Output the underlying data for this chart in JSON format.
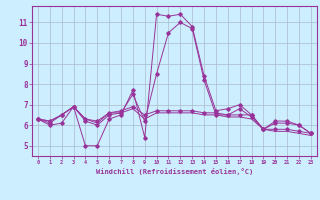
{
  "xlabel": "Windchill (Refroidissement éolien,°C)",
  "background_color": "#cceeff",
  "grid_color": "#aabbcc",
  "line_color": "#993399",
  "xlim": [
    -0.5,
    23.5
  ],
  "ylim": [
    4.5,
    11.8
  ],
  "xticks": [
    0,
    1,
    2,
    3,
    4,
    5,
    6,
    7,
    8,
    9,
    10,
    11,
    12,
    13,
    14,
    15,
    16,
    17,
    18,
    19,
    20,
    21,
    22,
    23
  ],
  "yticks": [
    5,
    6,
    7,
    8,
    9,
    10,
    11
  ],
  "hours": [
    0,
    1,
    2,
    3,
    4,
    5,
    6,
    7,
    8,
    9,
    10,
    11,
    12,
    13,
    14,
    15,
    16,
    17,
    18,
    19,
    20,
    21,
    22,
    23
  ],
  "line1": [
    6.3,
    6.0,
    6.1,
    6.9,
    5.0,
    5.0,
    6.3,
    6.5,
    7.7,
    5.4,
    11.4,
    11.3,
    11.4,
    10.8,
    8.4,
    6.7,
    6.8,
    7.0,
    6.5,
    5.8,
    6.2,
    6.2,
    6.0,
    5.6
  ],
  "line2": [
    6.3,
    6.1,
    6.5,
    6.9,
    6.2,
    6.0,
    6.5,
    6.6,
    7.5,
    6.2,
    8.5,
    10.5,
    11.0,
    10.7,
    8.2,
    6.5,
    6.5,
    6.8,
    6.4,
    5.8,
    6.1,
    6.1,
    6.0,
    5.6
  ],
  "line3": [
    6.3,
    6.2,
    6.5,
    6.9,
    6.3,
    6.2,
    6.6,
    6.7,
    6.9,
    6.5,
    6.7,
    6.7,
    6.7,
    6.7,
    6.6,
    6.6,
    6.5,
    6.5,
    6.5,
    5.8,
    5.8,
    5.8,
    5.7,
    5.6
  ],
  "line4": [
    6.3,
    6.2,
    6.5,
    6.9,
    6.3,
    6.1,
    6.6,
    6.6,
    6.8,
    6.3,
    6.6,
    6.6,
    6.6,
    6.6,
    6.5,
    6.5,
    6.4,
    6.4,
    6.3,
    5.8,
    5.7,
    5.7,
    5.6,
    5.5
  ]
}
